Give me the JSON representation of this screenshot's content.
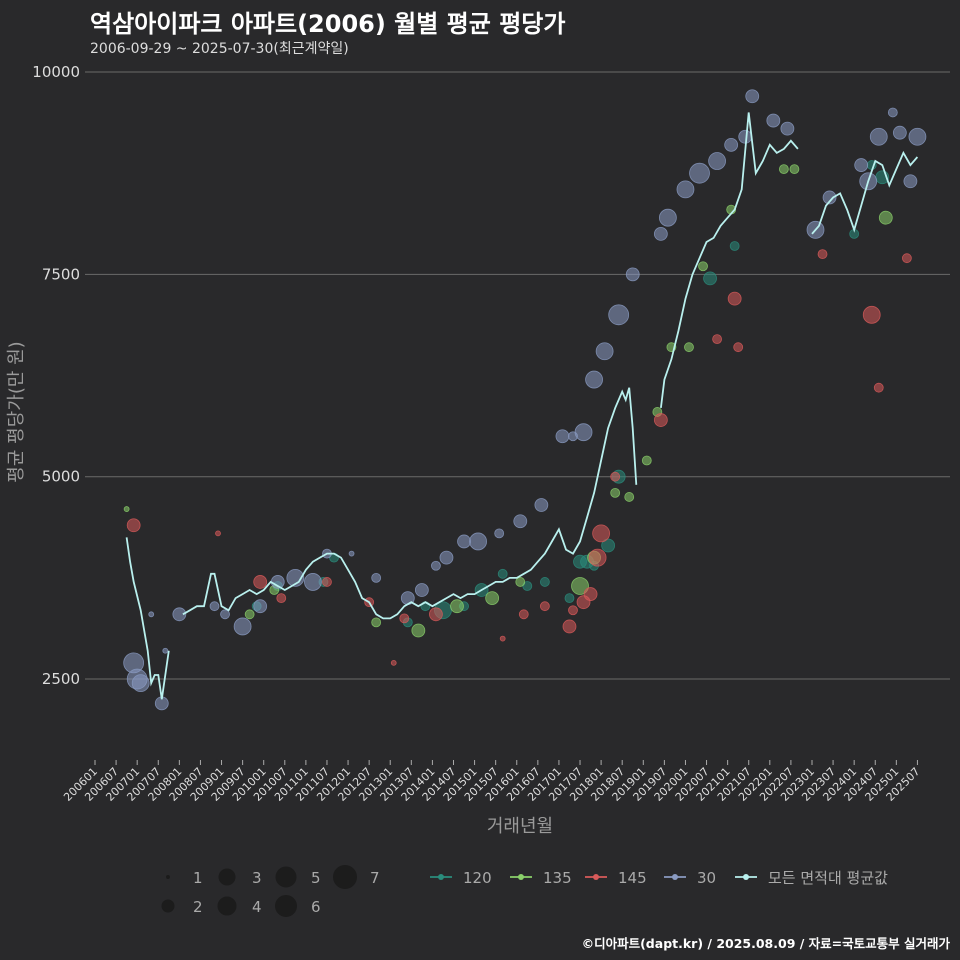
{
  "header": {
    "title": "역삼아이파크 아파트(2006) 월별 평균 평당가",
    "subtitle": "2006-09-29 ~ 2025-07-30(최근계약일)"
  },
  "footer": "©디아파트(dapt.kr) / 2025.08.09 / 자료=국토교통부 실거래가",
  "colors": {
    "background": "#29292b",
    "grid": "#6a6a6a",
    "avg_line": "#b9f0ee",
    "series_120": "#2a8c7c",
    "series_135": "#8ad06a",
    "series_145": "#d85a5a",
    "series_30": "#8a9bc2"
  },
  "chart_data": {
    "type": "scatter",
    "title": "역삼아이파크 아파트(2006) 월별 평균 평당가",
    "subtitle": "2006-09-29 ~ 2025-07-30(최근계약일)",
    "xlabel": "거래년월",
    "ylabel": "평균 평당가(만 원)",
    "x_range": [
      "2006-01",
      "2025-12"
    ],
    "ylim": [
      1500,
      10000
    ],
    "y_ticks": [
      2500,
      5000,
      7500,
      10000
    ],
    "x_ticks": [
      "200601",
      "200607",
      "200701",
      "200707",
      "200801",
      "200807",
      "200901",
      "200907",
      "201001",
      "201007",
      "201101",
      "201107",
      "201201",
      "201207",
      "201301",
      "201307",
      "201401",
      "201407",
      "201501",
      "201507",
      "201601",
      "201607",
      "201701",
      "201707",
      "201801",
      "201807",
      "201901",
      "201907",
      "202001",
      "202007",
      "202101",
      "202107",
      "202201",
      "202207",
      "202301",
      "202307",
      "202401",
      "202407",
      "202501",
      "202507"
    ],
    "grid": "horizontal",
    "size_legend": [
      1,
      2,
      3,
      4,
      5,
      6,
      7
    ],
    "legend_position": "bottom",
    "series": [
      {
        "name": "120",
        "color": "#2a8c7c",
        "points": [
          [
            "2009-11",
            3400,
            2
          ],
          [
            "2010-05",
            3650,
            2
          ],
          [
            "2011-06",
            3700,
            2
          ],
          [
            "2011-09",
            4000,
            2
          ],
          [
            "2013-06",
            3200,
            2
          ],
          [
            "2013-11",
            3400,
            2
          ],
          [
            "2014-04",
            3350,
            4
          ],
          [
            "2014-10",
            3400,
            2
          ],
          [
            "2015-03",
            3600,
            3
          ],
          [
            "2015-09",
            3800,
            2
          ],
          [
            "2016-04",
            3650,
            2
          ],
          [
            "2016-09",
            3700,
            2
          ],
          [
            "2017-04",
            3500,
            2
          ],
          [
            "2017-07",
            3950,
            3
          ],
          [
            "2017-09",
            3950,
            3
          ],
          [
            "2017-11",
            3900,
            2
          ],
          [
            "2018-03",
            4150,
            3
          ],
          [
            "2018-06",
            5000,
            3
          ],
          [
            "2020-08",
            7450,
            3
          ],
          [
            "2021-03",
            7850,
            2
          ],
          [
            "2024-01",
            8000,
            2
          ],
          [
            "2024-06",
            8850,
            2
          ],
          [
            "2024-09",
            8700,
            3
          ]
        ]
      },
      {
        "name": "135",
        "color": "#8ad06a",
        "points": [
          [
            "2006-10",
            4600,
            1
          ],
          [
            "2009-09",
            3300,
            2
          ],
          [
            "2010-04",
            3600,
            2
          ],
          [
            "2012-09",
            3200,
            2
          ],
          [
            "2013-09",
            3100,
            3
          ],
          [
            "2014-08",
            3400,
            3
          ],
          [
            "2015-06",
            3500,
            3
          ],
          [
            "2016-02",
            3700,
            2
          ],
          [
            "2017-07",
            3650,
            4
          ],
          [
            "2017-11",
            4000,
            3
          ],
          [
            "2018-05",
            4800,
            2
          ],
          [
            "2018-09",
            4750,
            2
          ],
          [
            "2019-02",
            5200,
            2
          ],
          [
            "2019-05",
            5800,
            2
          ],
          [
            "2019-09",
            6600,
            2
          ],
          [
            "2020-02",
            6600,
            2
          ],
          [
            "2020-06",
            7600,
            2
          ],
          [
            "2021-02",
            8300,
            2
          ],
          [
            "2022-05",
            8800,
            2
          ],
          [
            "2022-08",
            8800,
            2
          ],
          [
            "2024-10",
            8200,
            3
          ]
        ]
      },
      {
        "name": "145",
        "color": "#d85a5a",
        "points": [
          [
            "2006-12",
            4400,
            3
          ],
          [
            "2008-12",
            4300,
            1
          ],
          [
            "2009-12",
            3700,
            3
          ],
          [
            "2010-06",
            3500,
            2
          ],
          [
            "2011-07",
            3700,
            2
          ],
          [
            "2012-07",
            3450,
            2
          ],
          [
            "2013-02",
            2700,
            1
          ],
          [
            "2013-05",
            3250,
            2
          ],
          [
            "2014-02",
            3300,
            3
          ],
          [
            "2015-09",
            3000,
            1
          ],
          [
            "2016-03",
            3300,
            2
          ],
          [
            "2016-09",
            3400,
            2
          ],
          [
            "2017-04",
            3150,
            3
          ],
          [
            "2017-05",
            3350,
            2
          ],
          [
            "2017-08",
            3450,
            3
          ],
          [
            "2017-10",
            3550,
            3
          ],
          [
            "2017-12",
            4000,
            4
          ],
          [
            "2018-01",
            4300,
            4
          ],
          [
            "2018-05",
            5000,
            2
          ],
          [
            "2019-06",
            5700,
            3
          ],
          [
            "2020-10",
            6700,
            2
          ],
          [
            "2021-03",
            7200,
            3
          ],
          [
            "2021-04",
            6600,
            2
          ],
          [
            "2023-04",
            7750,
            2
          ],
          [
            "2024-06",
            7000,
            4
          ],
          [
            "2024-08",
            6100,
            2
          ],
          [
            "2025-04",
            7700,
            2
          ]
        ]
      },
      {
        "name": "30",
        "color": "#8a9bc2",
        "points": [
          [
            "2006-12",
            2700,
            5
          ],
          [
            "2007-01",
            2500,
            5
          ],
          [
            "2007-02",
            2450,
            4
          ],
          [
            "2007-05",
            3300,
            1
          ],
          [
            "2007-08",
            2200,
            3
          ],
          [
            "2007-09",
            2850,
            1
          ],
          [
            "2008-01",
            3300,
            3
          ],
          [
            "2008-11",
            3400,
            2
          ],
          [
            "2009-02",
            3300,
            2
          ],
          [
            "2009-07",
            3150,
            4
          ],
          [
            "2009-12",
            3400,
            3
          ],
          [
            "2010-05",
            3700,
            3
          ],
          [
            "2010-10",
            3750,
            4
          ],
          [
            "2011-03",
            3700,
            4
          ],
          [
            "2011-07",
            4050,
            2
          ],
          [
            "2012-02",
            4050,
            1
          ],
          [
            "2012-09",
            3750,
            2
          ],
          [
            "2013-06",
            3500,
            3
          ],
          [
            "2013-10",
            3600,
            3
          ],
          [
            "2014-02",
            3900,
            2
          ],
          [
            "2014-05",
            4000,
            3
          ],
          [
            "2014-10",
            4200,
            3
          ],
          [
            "2015-02",
            4200,
            4
          ],
          [
            "2015-08",
            4300,
            2
          ],
          [
            "2016-02",
            4450,
            3
          ],
          [
            "2016-08",
            4650,
            3
          ],
          [
            "2017-02",
            5500,
            3
          ],
          [
            "2017-05",
            5500,
            2
          ],
          [
            "2017-08",
            5550,
            4
          ],
          [
            "2017-11",
            6200,
            4
          ],
          [
            "2018-02",
            6550,
            4
          ],
          [
            "2018-06",
            7000,
            5
          ],
          [
            "2018-10",
            7500,
            3
          ],
          [
            "2019-06",
            8000,
            3
          ],
          [
            "2019-08",
            8200,
            4
          ],
          [
            "2020-01",
            8550,
            4
          ],
          [
            "2020-05",
            8750,
            5
          ],
          [
            "2020-10",
            8900,
            4
          ],
          [
            "2021-02",
            9100,
            3
          ],
          [
            "2021-06",
            9200,
            3
          ],
          [
            "2021-08",
            9700,
            3
          ],
          [
            "2022-02",
            9400,
            3
          ],
          [
            "2022-06",
            9300,
            3
          ],
          [
            "2023-02",
            8050,
            4
          ],
          [
            "2023-06",
            8450,
            3
          ],
          [
            "2024-03",
            8850,
            3
          ],
          [
            "2024-05",
            8650,
            4
          ],
          [
            "2024-08",
            9200,
            4
          ],
          [
            "2024-12",
            9500,
            2
          ],
          [
            "2025-02",
            9250,
            3
          ],
          [
            "2025-05",
            8650,
            3
          ],
          [
            "2025-07",
            9200,
            4
          ]
        ]
      }
    ],
    "average_series": {
      "name": "모든 면적대 평균값",
      "segments": [
        [
          [
            "2006-10",
            4250
          ],
          [
            "2006-11",
            3950
          ],
          [
            "2006-12",
            3700
          ],
          [
            "2007-02",
            3350
          ],
          [
            "2007-04",
            2850
          ],
          [
            "2007-05",
            2450
          ],
          [
            "2007-06",
            2550
          ],
          [
            "2007-07",
            2550
          ],
          [
            "2007-08",
            2250
          ],
          [
            "2007-10",
            2850
          ]
        ],
        [
          [
            "2008-02",
            3300
          ],
          [
            "2008-04",
            3350
          ],
          [
            "2008-06",
            3400
          ],
          [
            "2008-08",
            3400
          ],
          [
            "2008-10",
            3800
          ],
          [
            "2008-11",
            3800
          ],
          [
            "2009-01",
            3400
          ],
          [
            "2009-03",
            3350
          ],
          [
            "2009-05",
            3500
          ],
          [
            "2009-07",
            3550
          ],
          [
            "2009-09",
            3600
          ],
          [
            "2009-11",
            3550
          ],
          [
            "2010-01",
            3600
          ],
          [
            "2010-03",
            3700
          ],
          [
            "2010-05",
            3650
          ],
          [
            "2010-07",
            3600
          ],
          [
            "2010-09",
            3650
          ],
          [
            "2010-11",
            3700
          ],
          [
            "2011-01",
            3850
          ],
          [
            "2011-03",
            3950
          ],
          [
            "2011-05",
            4000
          ],
          [
            "2011-07",
            4050
          ],
          [
            "2011-09",
            4050
          ],
          [
            "2011-11",
            4000
          ],
          [
            "2012-01",
            3850
          ],
          [
            "2012-03",
            3700
          ],
          [
            "2012-05",
            3500
          ],
          [
            "2012-07",
            3450
          ],
          [
            "2012-09",
            3300
          ],
          [
            "2012-11",
            3250
          ],
          [
            "2013-01",
            3250
          ],
          [
            "2013-03",
            3300
          ],
          [
            "2013-05",
            3400
          ],
          [
            "2013-07",
            3450
          ],
          [
            "2013-09",
            3400
          ],
          [
            "2013-11",
            3450
          ],
          [
            "2014-01",
            3400
          ],
          [
            "2014-03",
            3450
          ],
          [
            "2014-05",
            3500
          ],
          [
            "2014-07",
            3550
          ],
          [
            "2014-09",
            3500
          ],
          [
            "2014-11",
            3550
          ],
          [
            "2015-01",
            3550
          ],
          [
            "2015-03",
            3600
          ],
          [
            "2015-05",
            3650
          ],
          [
            "2015-07",
            3700
          ],
          [
            "2015-09",
            3700
          ],
          [
            "2015-11",
            3750
          ],
          [
            "2016-01",
            3750
          ],
          [
            "2016-03",
            3800
          ],
          [
            "2016-05",
            3850
          ],
          [
            "2016-07",
            3950
          ],
          [
            "2016-09",
            4050
          ],
          [
            "2016-11",
            4200
          ],
          [
            "2017-01",
            4350
          ],
          [
            "2017-03",
            4100
          ],
          [
            "2017-05",
            4050
          ],
          [
            "2017-07",
            4200
          ],
          [
            "2017-09",
            4500
          ],
          [
            "2017-11",
            4800
          ],
          [
            "2018-01",
            5200
          ],
          [
            "2018-03",
            5600
          ],
          [
            "2018-05",
            5850
          ],
          [
            "2018-07",
            6050
          ],
          [
            "2018-08",
            5950
          ],
          [
            "2018-09",
            6100
          ],
          [
            "2018-10",
            5600
          ],
          [
            "2018-11",
            4900
          ]
        ],
        [
          [
            "2019-06",
            5850
          ],
          [
            "2019-07",
            6200
          ],
          [
            "2019-09",
            6450
          ],
          [
            "2019-11",
            6800
          ],
          [
            "2020-01",
            7200
          ],
          [
            "2020-03",
            7500
          ],
          [
            "2020-05",
            7700
          ],
          [
            "2020-07",
            7900
          ],
          [
            "2020-09",
            7950
          ],
          [
            "2020-11",
            8100
          ],
          [
            "2021-01",
            8200
          ],
          [
            "2021-03",
            8300
          ],
          [
            "2021-05",
            8550
          ],
          [
            "2021-07",
            9500
          ],
          [
            "2021-09",
            8750
          ],
          [
            "2021-11",
            8900
          ],
          [
            "2022-01",
            9100
          ],
          [
            "2022-03",
            9000
          ],
          [
            "2022-05",
            9050
          ],
          [
            "2022-07",
            9150
          ],
          [
            "2022-09",
            9050
          ]
        ],
        [
          [
            "2023-01",
            8000
          ],
          [
            "2023-03",
            8100
          ],
          [
            "2023-05",
            8350
          ],
          [
            "2023-07",
            8450
          ],
          [
            "2023-09",
            8500
          ],
          [
            "2023-11",
            8300
          ],
          [
            "2024-01",
            8050
          ],
          [
            "2024-03",
            8350
          ],
          [
            "2024-05",
            8650
          ],
          [
            "2024-07",
            8900
          ],
          [
            "2024-09",
            8850
          ],
          [
            "2024-11",
            8600
          ],
          [
            "2025-01",
            8800
          ],
          [
            "2025-03",
            9000
          ],
          [
            "2025-05",
            8850
          ],
          [
            "2025-07",
            8950
          ]
        ]
      ]
    }
  }
}
